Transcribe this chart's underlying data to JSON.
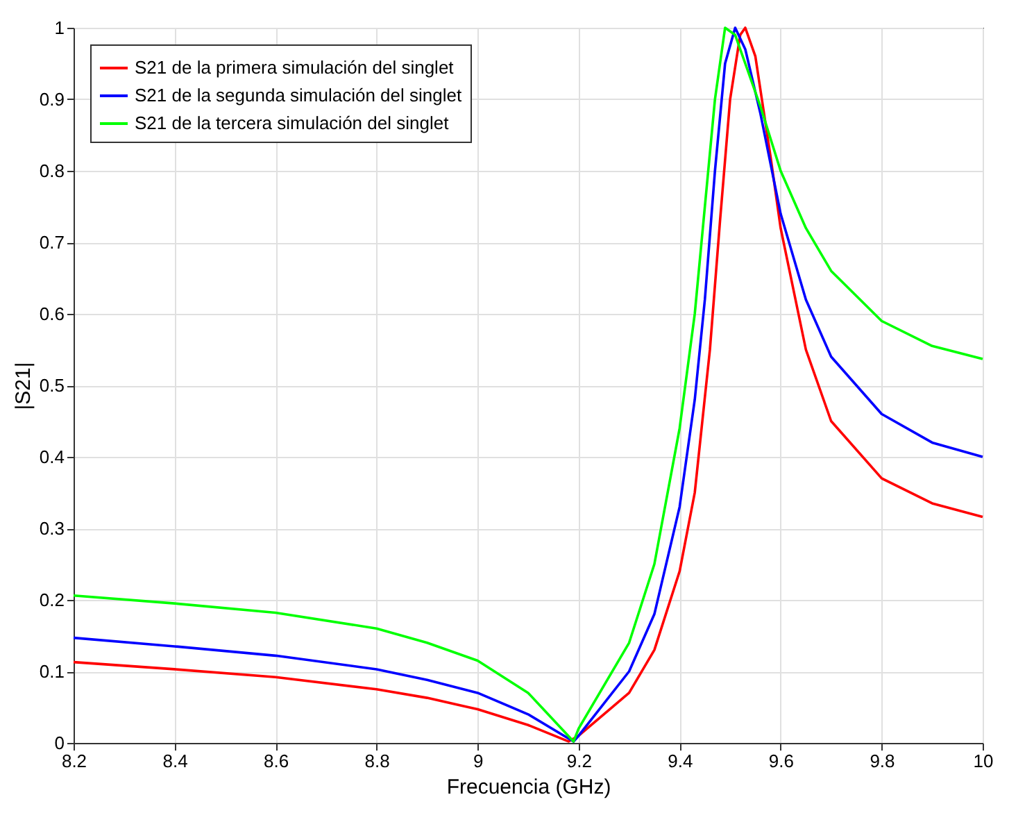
{
  "chart_data": {
    "type": "line",
    "xlabel": "Frecuencia (GHz)",
    "ylabel": "|S21|",
    "xlim": [
      8.2,
      10
    ],
    "ylim": [
      0,
      1
    ],
    "xticks": [
      8.2,
      8.4,
      8.6,
      8.8,
      9,
      9.2,
      9.4,
      9.6,
      9.8,
      10
    ],
    "yticks": [
      0,
      0.1,
      0.2,
      0.3,
      0.4,
      0.5,
      0.6,
      0.7,
      0.8,
      0.9,
      1
    ],
    "grid": true,
    "legend": "top left",
    "line_style": "solid",
    "marker": "none",
    "series": [
      {
        "name": "S21 de la primera simulación del singlet",
        "color": "#ff0000",
        "x": [
          8.2,
          8.4,
          8.6,
          8.8,
          8.9,
          9.0,
          9.1,
          9.18,
          9.2,
          9.3,
          9.35,
          9.4,
          9.43,
          9.46,
          9.48,
          9.5,
          9.52,
          9.53,
          9.55,
          9.58,
          9.6,
          9.65,
          9.7,
          9.8,
          9.9,
          10
        ],
        "values": [
          0.113,
          0.103,
          0.092,
          0.075,
          0.063,
          0.047,
          0.025,
          0.002,
          0.01,
          0.07,
          0.13,
          0.24,
          0.35,
          0.55,
          0.73,
          0.9,
          0.99,
          1.0,
          0.96,
          0.82,
          0.72,
          0.55,
          0.45,
          0.37,
          0.335,
          0.316
        ]
      },
      {
        "name": "S21 de la segunda simulación del singlet",
        "color": "#0000ff",
        "x": [
          8.2,
          8.4,
          8.6,
          8.8,
          8.9,
          9.0,
          9.1,
          9.19,
          9.2,
          9.3,
          9.35,
          9.4,
          9.43,
          9.45,
          9.47,
          9.49,
          9.51,
          9.53,
          9.56,
          9.6,
          9.65,
          9.7,
          9.8,
          9.9,
          10
        ],
        "values": [
          0.147,
          0.135,
          0.122,
          0.103,
          0.088,
          0.07,
          0.04,
          0.002,
          0.01,
          0.1,
          0.18,
          0.33,
          0.48,
          0.62,
          0.8,
          0.95,
          1.0,
          0.97,
          0.88,
          0.74,
          0.62,
          0.54,
          0.46,
          0.42,
          0.4
        ]
      },
      {
        "name": "S21 de la tercera simulación del singlet",
        "color": "#00ff00",
        "x": [
          8.2,
          8.4,
          8.6,
          8.8,
          8.9,
          9.0,
          9.1,
          9.19,
          9.2,
          9.3,
          9.35,
          9.4,
          9.43,
          9.45,
          9.47,
          9.49,
          9.51,
          9.53,
          9.56,
          9.6,
          9.65,
          9.7,
          9.8,
          9.9,
          10
        ],
        "values": [
          0.206,
          0.195,
          0.182,
          0.16,
          0.14,
          0.115,
          0.07,
          0.002,
          0.02,
          0.14,
          0.25,
          0.44,
          0.6,
          0.75,
          0.9,
          1.0,
          0.99,
          0.95,
          0.89,
          0.8,
          0.72,
          0.66,
          0.59,
          0.555,
          0.537
        ]
      }
    ]
  }
}
